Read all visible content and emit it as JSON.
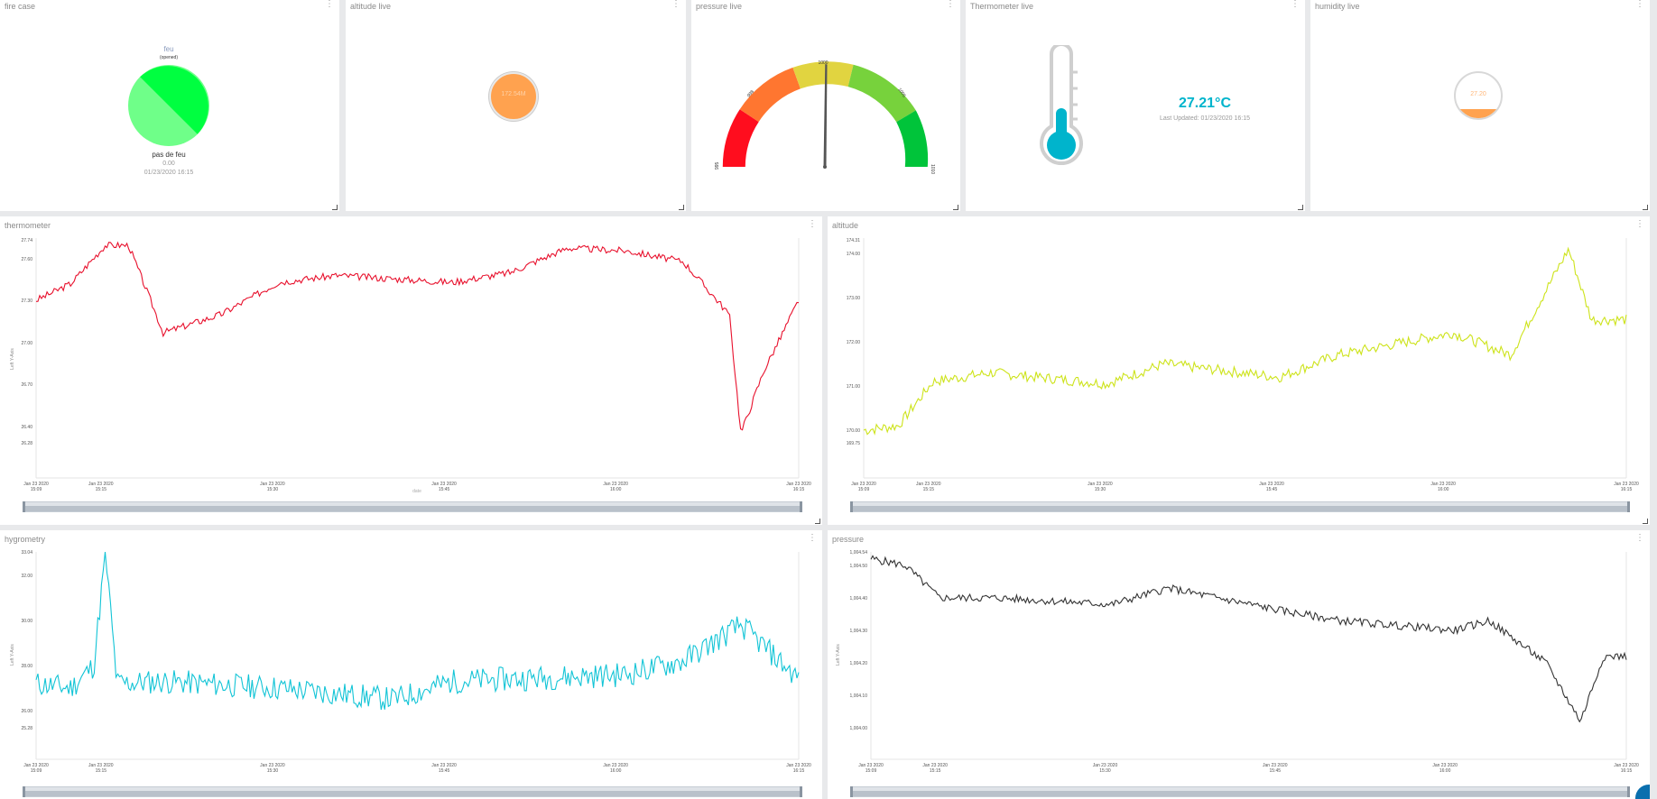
{
  "fire_panel": {
    "title": "fire case",
    "series": "feu",
    "status": "(opened)",
    "label": "pas de feu",
    "value": "0.00",
    "timestamp": "01/23/2020 16:15"
  },
  "altitude_live": {
    "title": "altitude live",
    "value": "172.54M"
  },
  "pressure_live": {
    "title": "pressure live",
    "gauge": {
      "min": "995",
      "max": "1010",
      "top": "1000",
      "lower_left": "998",
      "lower_right": "1005",
      "value": 1004.3
    }
  },
  "thermometer_live": {
    "title": "Thermometer live",
    "value": "27.21°C",
    "updated": "Last Updated: 01/23/2020 16:15"
  },
  "humidity_live": {
    "title": "humidity live",
    "value": "27.20",
    "fill_fraction": 0.2
  },
  "colors": {
    "thermo": "#e8112d",
    "altitude": "#cde31a",
    "hygro": "#12c4d6",
    "pressure": "#333333",
    "thermo_fill": "#00b4cc",
    "orange": "#ffa24f",
    "green_dark": "#00ff40",
    "green_light": "#6fff89"
  },
  "charts": {
    "thermometer": {
      "title": "thermometer",
      "ylabel": "Left Y-Axis",
      "xlabel": "date",
      "yticks": [
        "27.74",
        "27.60",
        "27.30",
        "27.00",
        "26.70",
        "26.40",
        "26.28"
      ],
      "xticks": [
        "Jan 23 2020 15:09",
        "Jan 23 2020 15:15",
        "Jan 23 2020 15:30",
        "Jan 23 2020 15:45",
        "Jan 23 2020 16:00",
        "Jan 23 2020 16:15"
      ]
    },
    "altitude": {
      "title": "altitude",
      "ylabel": "",
      "yticks": [
        "174.31",
        "174.00",
        "173.00",
        "172.00",
        "171.00",
        "170.00",
        "169.75"
      ],
      "xticks": [
        "Jan 23 2020 15:09",
        "Jan 23 2020 15:15",
        "Jan 23 2020 15:30",
        "Jan 23 2020 15:45",
        "Jan 23 2020 16:00",
        "Jan 23 2020 16:15"
      ]
    },
    "hygrometry": {
      "title": "hygrometry",
      "ylabel": "Left Y-Axis",
      "yticks": [
        "33.04",
        "32.00",
        "30.00",
        "28.00",
        "26.00",
        "25.28"
      ],
      "xticks": [
        "Jan 23 2020 15:09",
        "Jan 23 2020 15:15",
        "Jan 23 2020 15:30",
        "Jan 23 2020 15:45",
        "Jan 23 2020 16:00",
        "Jan 23 2020 16:15"
      ]
    },
    "pressure": {
      "title": "pressure",
      "ylabel": "Left Y-Axis",
      "yticks": [
        "1,004.54",
        "1,004.50",
        "1,004.40",
        "1,004.30",
        "1,004.20",
        "1,004.10",
        "1,004.00"
      ],
      "xticks": [
        "Jan 23 2020 15:09",
        "Jan 23 2020 15:15",
        "Jan 23 2020 15:30",
        "Jan 23 2020 15:45",
        "Jan 23 2020 16:00",
        "Jan 23 2020 16:15"
      ]
    }
  },
  "chart_data": [
    {
      "type": "line",
      "title": "thermometer",
      "ylabel": "Left Y-Axis",
      "xlabel": "date",
      "ylim": [
        26.28,
        27.74
      ],
      "x": [
        "15:09",
        "15:12",
        "15:15",
        "15:17",
        "15:20",
        "15:25",
        "15:30",
        "15:35",
        "15:45",
        "15:50",
        "15:55",
        "16:00",
        "16:05",
        "16:09",
        "16:10",
        "16:12",
        "16:15"
      ],
      "series": [
        {
          "values": [
            27.3,
            27.42,
            27.7,
            27.7,
            27.07,
            27.2,
            27.43,
            27.48,
            27.43,
            27.5,
            27.68,
            27.66,
            27.58,
            27.2,
            26.35,
            26.8,
            27.3
          ]
        }
      ]
    },
    {
      "type": "line",
      "title": "altitude",
      "ylim": [
        169.75,
        174.31
      ],
      "x": [
        "15:09",
        "15:12",
        "15:15",
        "15:20",
        "15:30",
        "15:35",
        "15:45",
        "15:50",
        "16:00",
        "16:05",
        "16:10",
        "16:12",
        "16:15"
      ],
      "series": [
        {
          "values": [
            170,
            170.1,
            171.1,
            171.3,
            171.05,
            171.5,
            171.2,
            171.7,
            172.2,
            171.7,
            174.1,
            172.5,
            172.5
          ]
        }
      ]
    },
    {
      "type": "line",
      "title": "hygrometry",
      "ylabel": "Left Y-Axis",
      "ylim": [
        25.28,
        33.04
      ],
      "x": [
        "15:09",
        "15:12",
        "15:14",
        "15:15",
        "15:16",
        "15:20",
        "15:30",
        "15:40",
        "15:45",
        "15:50",
        "16:00",
        "16:05",
        "16:10",
        "16:15"
      ],
      "series": [
        {
          "values": [
            27.2,
            27.0,
            28.0,
            33.0,
            27.2,
            27.3,
            27.0,
            26.5,
            27.3,
            27.4,
            27.6,
            28.2,
            29.8,
            27.4
          ]
        }
      ]
    },
    {
      "type": "line",
      "title": "pressure",
      "ylabel": "Left Y-Axis",
      "ylim": [
        1004.0,
        1004.54
      ],
      "x": [
        "15:09",
        "15:12",
        "15:15",
        "15:20",
        "15:30",
        "15:35",
        "15:45",
        "15:50",
        "16:00",
        "16:03",
        "16:08",
        "16:11",
        "16:13",
        "16:15"
      ],
      "series": [
        {
          "values": [
            1004.52,
            1004.5,
            1004.4,
            1004.4,
            1004.38,
            1004.43,
            1004.36,
            1004.33,
            1004.3,
            1004.33,
            1004.2,
            1004.02,
            1004.22,
            1004.22
          ]
        }
      ]
    }
  ]
}
